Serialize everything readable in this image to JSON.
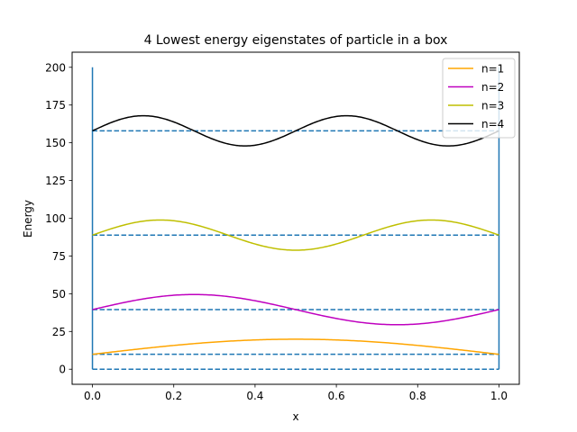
{
  "chart_data": {
    "type": "line",
    "title": "4 Lowest energy eigenstates of particle in a box",
    "xlabel": "x",
    "ylabel": "Energy",
    "xlim": [
      -0.05,
      1.05
    ],
    "ylim": [
      -10,
      210
    ],
    "xticks": [
      "0.0",
      "0.2",
      "0.4",
      "0.6",
      "0.8",
      "1.0"
    ],
    "yticks": [
      "0",
      "25",
      "50",
      "75",
      "100",
      "125",
      "150",
      "175",
      "200"
    ],
    "grid": false,
    "legend_position": "top-right",
    "walls": {
      "color": "#1f77b4",
      "x": [
        0,
        1
      ],
      "y_range": [
        0,
        200
      ]
    },
    "energy_levels": {
      "color": "#1f77b4",
      "style": "dashed",
      "values": [
        0,
        9.87,
        39.48,
        88.83,
        157.91
      ]
    },
    "series": [
      {
        "name": "n=1",
        "n": 1,
        "color": "#ffa500",
        "energy": 9.87,
        "amplitude": 10
      },
      {
        "name": "n=2",
        "n": 2,
        "color": "#bf00bf",
        "energy": 39.48,
        "amplitude": 10
      },
      {
        "name": "n=3",
        "n": 3,
        "color": "#bfbf00",
        "energy": 88.83,
        "amplitude": 10
      },
      {
        "name": "n=4",
        "n": 4,
        "color": "#000000",
        "energy": 157.91,
        "amplitude": 10
      }
    ]
  }
}
